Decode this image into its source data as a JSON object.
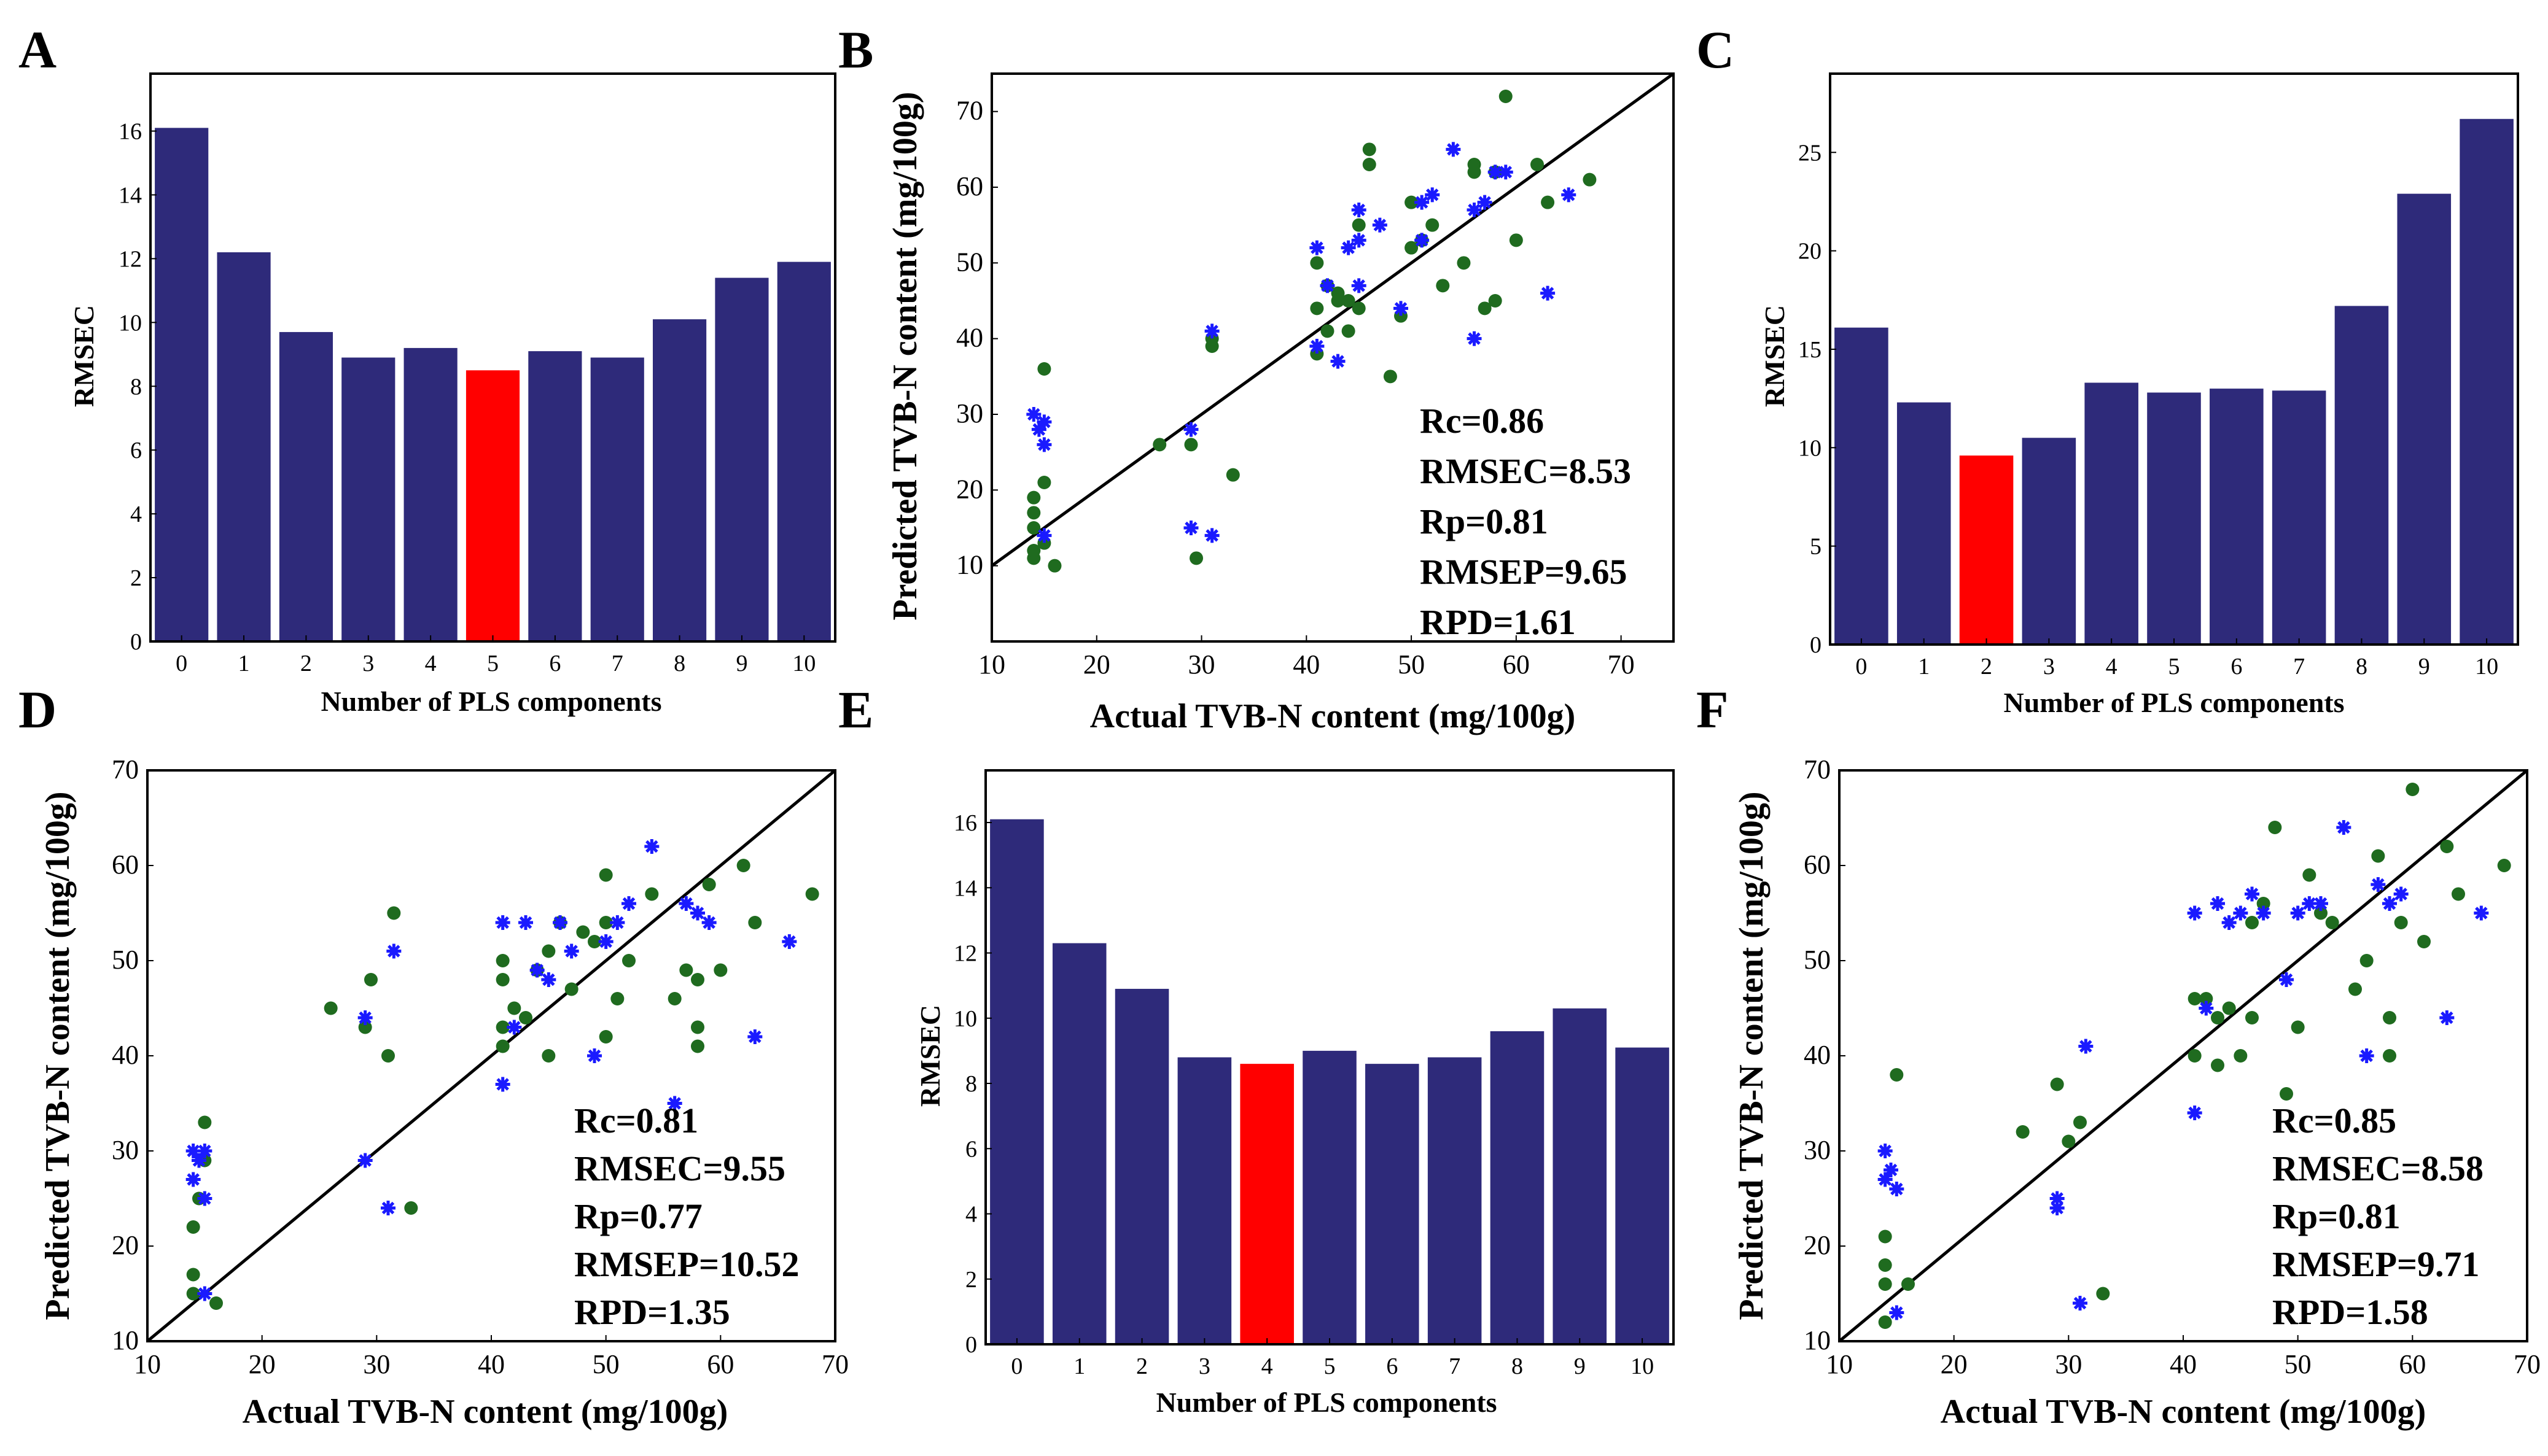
{
  "figure": {
    "panel_letters": [
      "A",
      "B",
      "C",
      "D",
      "E",
      "F"
    ]
  },
  "colors": {
    "bar": "#2e2a7a",
    "bar_highlight": "#ff0000",
    "calibration_point": "#1f6b1f",
    "prediction_point": "#1a1aff",
    "axis": "#000000"
  },
  "chart_data": [
    {
      "id": "A",
      "type": "bar",
      "categories": [
        "0",
        "1",
        "2",
        "3",
        "4",
        "5",
        "6",
        "7",
        "8",
        "9",
        "10"
      ],
      "values": [
        16.1,
        12.2,
        9.7,
        8.9,
        9.2,
        8.5,
        9.1,
        8.9,
        10.1,
        11.4,
        11.9
      ],
      "highlight_index": 5,
      "xlabel": "Number of PLS components",
      "ylabel": "RMSEC",
      "ylim": [
        0,
        17.8
      ],
      "yticks": [
        0,
        2,
        4,
        6,
        8,
        10,
        12,
        14,
        16
      ]
    },
    {
      "id": "B",
      "type": "scatter",
      "xlabel": "Actual TVB-N content (mg/100g)",
      "ylabel": "Predicted TVB-N content (mg/100g)",
      "xlim": [
        10,
        75
      ],
      "ylim": [
        0,
        75
      ],
      "xticks": [
        10,
        20,
        30,
        40,
        50,
        60,
        70
      ],
      "yticks": [
        10,
        20,
        30,
        40,
        50,
        60,
        70
      ],
      "diagonal": true,
      "series": [
        {
          "name": "calibration",
          "marker": "dot",
          "points": [
            [
              14,
              11
            ],
            [
              14,
              12
            ],
            [
              14,
              15
            ],
            [
              14,
              17
            ],
            [
              14,
              19
            ],
            [
              15,
              13
            ],
            [
              15,
              21
            ],
            [
              15,
              36
            ],
            [
              16,
              10
            ],
            [
              26,
              26
            ],
            [
              29,
              26
            ],
            [
              29.5,
              11
            ],
            [
              31,
              39
            ],
            [
              31,
              40
            ],
            [
              33,
              22
            ],
            [
              41,
              38
            ],
            [
              41,
              44
            ],
            [
              41,
              50
            ],
            [
              42,
              41
            ],
            [
              42,
              47
            ],
            [
              43,
              45
            ],
            [
              43,
              46
            ],
            [
              44,
              41
            ],
            [
              44,
              45
            ],
            [
              45,
              44
            ],
            [
              45,
              55
            ],
            [
              46,
              65
            ],
            [
              46,
              63
            ],
            [
              48,
              35
            ],
            [
              49,
              43
            ],
            [
              50,
              52
            ],
            [
              50,
              58
            ],
            [
              51,
              53
            ],
            [
              52,
              55
            ],
            [
              53,
              47
            ],
            [
              55,
              50
            ],
            [
              56,
              62
            ],
            [
              56,
              63
            ],
            [
              57,
              44
            ],
            [
              58,
              62
            ],
            [
              58,
              45
            ],
            [
              59,
              72
            ],
            [
              60,
              53
            ],
            [
              62,
              63
            ],
            [
              63,
              58
            ],
            [
              67,
              61
            ]
          ]
        },
        {
          "name": "prediction",
          "marker": "star",
          "points": [
            [
              14,
              30
            ],
            [
              14.5,
              28
            ],
            [
              15,
              26
            ],
            [
              15,
              29
            ],
            [
              15,
              14
            ],
            [
              29,
              28
            ],
            [
              29,
              15
            ],
            [
              31,
              14
            ],
            [
              31,
              41
            ],
            [
              41,
              39
            ],
            [
              41,
              52
            ],
            [
              42,
              47
            ],
            [
              43,
              37
            ],
            [
              44,
              52
            ],
            [
              45,
              53
            ],
            [
              45,
              47
            ],
            [
              45,
              57
            ],
            [
              47,
              55
            ],
            [
              49,
              44
            ],
            [
              51,
              53
            ],
            [
              51,
              58
            ],
            [
              52,
              59
            ],
            [
              54,
              65
            ],
            [
              56,
              40
            ],
            [
              56,
              57
            ],
            [
              57,
              58
            ],
            [
              58,
              62
            ],
            [
              59,
              62
            ],
            [
              63,
              46
            ],
            [
              65,
              59
            ]
          ]
        }
      ],
      "stats": [
        "Rc=0.86",
        "RMSEC=8.53",
        "Rp=0.81",
        "RMSEP=9.65",
        "RPD=1.61"
      ]
    },
    {
      "id": "C",
      "type": "bar",
      "categories": [
        "0",
        "1",
        "2",
        "3",
        "4",
        "5",
        "6",
        "7",
        "8",
        "9",
        "10"
      ],
      "values": [
        16.1,
        12.3,
        9.6,
        10.5,
        13.3,
        12.8,
        13.0,
        12.9,
        17.2,
        22.9,
        26.7
      ],
      "highlight_index": 2,
      "xlabel": "Number of PLS components",
      "ylabel": "RMSEC",
      "ylim": [
        0,
        29
      ],
      "yticks": [
        0,
        5,
        10,
        15,
        20,
        25
      ]
    },
    {
      "id": "D",
      "type": "scatter",
      "xlabel": "Actual TVB-N content (mg/100g)",
      "ylabel": "Predicted TVB-N content (mg/100g)",
      "xlim": [
        10,
        70
      ],
      "ylim": [
        10,
        70
      ],
      "xticks": [
        10,
        20,
        30,
        40,
        50,
        60,
        70
      ],
      "yticks": [
        10,
        20,
        30,
        40,
        50,
        60,
        70
      ],
      "diagonal": true,
      "series": [
        {
          "name": "calibration",
          "marker": "dot",
          "points": [
            [
              14,
              15
            ],
            [
              14,
              17
            ],
            [
              14,
              22
            ],
            [
              14.5,
              25
            ],
            [
              15,
              29
            ],
            [
              15,
              33
            ],
            [
              16,
              14
            ],
            [
              26,
              45
            ],
            [
              29,
              43
            ],
            [
              29.5,
              48
            ],
            [
              31,
              40
            ],
            [
              31.5,
              55
            ],
            [
              33,
              24
            ],
            [
              41,
              41
            ],
            [
              41,
              43
            ],
            [
              41,
              48
            ],
            [
              41,
              50
            ],
            [
              42,
              45
            ],
            [
              43,
              44
            ],
            [
              44,
              49
            ],
            [
              45,
              40
            ],
            [
              45,
              51
            ],
            [
              46,
              54
            ],
            [
              47,
              47
            ],
            [
              48,
              53
            ],
            [
              49,
              52
            ],
            [
              50,
              42
            ],
            [
              50,
              54
            ],
            [
              50,
              59
            ],
            [
              51,
              46
            ],
            [
              52,
              50
            ],
            [
              54,
              57
            ],
            [
              56,
              46
            ],
            [
              57,
              49
            ],
            [
              58,
              43
            ],
            [
              58,
              48
            ],
            [
              58,
              41
            ],
            [
              59,
              58
            ],
            [
              60,
              49
            ],
            [
              62,
              60
            ],
            [
              63,
              54
            ],
            [
              68,
              57
            ]
          ]
        },
        {
          "name": "prediction",
          "marker": "star",
          "points": [
            [
              14,
              27
            ],
            [
              14,
              30
            ],
            [
              14.5,
              29
            ],
            [
              15,
              30
            ],
            [
              15,
              25
            ],
            [
              15,
              15
            ],
            [
              29,
              29
            ],
            [
              29,
              44
            ],
            [
              31,
              24
            ],
            [
              31.5,
              51
            ],
            [
              41,
              37
            ],
            [
              41,
              54
            ],
            [
              42,
              43
            ],
            [
              43,
              54
            ],
            [
              44,
              49
            ],
            [
              45,
              48
            ],
            [
              46,
              54
            ],
            [
              47,
              51
            ],
            [
              49,
              40
            ],
            [
              50,
              52
            ],
            [
              51,
              54
            ],
            [
              52,
              56
            ],
            [
              54,
              62
            ],
            [
              56,
              35
            ],
            [
              57,
              56
            ],
            [
              58,
              55
            ],
            [
              59,
              54
            ],
            [
              63,
              42
            ],
            [
              66,
              52
            ]
          ]
        }
      ],
      "stats": [
        "Rc=0.81",
        "RMSEC=9.55",
        "Rp=0.77",
        "RMSEP=10.52",
        "RPD=1.35"
      ]
    },
    {
      "id": "E",
      "type": "bar",
      "categories": [
        "0",
        "1",
        "2",
        "3",
        "4",
        "5",
        "6",
        "7",
        "8",
        "9",
        "10"
      ],
      "values": [
        16.1,
        12.3,
        10.9,
        8.8,
        8.6,
        9.0,
        8.6,
        8.8,
        9.6,
        10.3,
        9.1
      ],
      "highlight_index": 4,
      "xlabel": "Number of PLS components",
      "ylabel": "RMSEC",
      "ylim": [
        0,
        17.6
      ],
      "yticks": [
        0,
        2,
        4,
        6,
        8,
        10,
        12,
        14,
        16
      ]
    },
    {
      "id": "F",
      "type": "scatter",
      "xlabel": "Actual TVB-N content (mg/100g)",
      "ylabel": "Predicted TVB-N content (mg/100g)",
      "xlim": [
        10,
        70
      ],
      "ylim": [
        10,
        70
      ],
      "xticks": [
        10,
        20,
        30,
        40,
        50,
        60,
        70
      ],
      "yticks": [
        10,
        20,
        30,
        40,
        50,
        60,
        70
      ],
      "diagonal": true,
      "series": [
        {
          "name": "calibration",
          "marker": "dot",
          "points": [
            [
              14,
              12
            ],
            [
              14,
              16
            ],
            [
              14,
              18
            ],
            [
              14,
              21
            ],
            [
              15,
              38
            ],
            [
              16,
              16
            ],
            [
              26,
              32
            ],
            [
              29,
              37
            ],
            [
              30,
              31
            ],
            [
              31,
              33
            ],
            [
              33,
              15
            ],
            [
              41,
              40
            ],
            [
              41,
              46
            ],
            [
              42,
              46
            ],
            [
              43,
              39
            ],
            [
              43,
              44
            ],
            [
              44,
              45
            ],
            [
              45,
              40
            ],
            [
              46,
              44
            ],
            [
              46,
              54
            ],
            [
              47,
              56
            ],
            [
              48,
              64
            ],
            [
              49,
              36
            ],
            [
              50,
              43
            ],
            [
              51,
              59
            ],
            [
              52,
              55
            ],
            [
              53,
              54
            ],
            [
              55,
              47
            ],
            [
              56,
              50
            ],
            [
              57,
              61
            ],
            [
              58,
              44
            ],
            [
              58,
              40
            ],
            [
              59,
              54
            ],
            [
              60,
              68
            ],
            [
              61,
              52
            ],
            [
              63,
              62
            ],
            [
              64,
              57
            ],
            [
              68,
              60
            ]
          ]
        },
        {
          "name": "prediction",
          "marker": "star",
          "points": [
            [
              14,
              30
            ],
            [
              14,
              27
            ],
            [
              14.5,
              28
            ],
            [
              15,
              26
            ],
            [
              15,
              13
            ],
            [
              29,
              25
            ],
            [
              29,
              24
            ],
            [
              31,
              14
            ],
            [
              31.5,
              41
            ],
            [
              41,
              34
            ],
            [
              41,
              55
            ],
            [
              42,
              45
            ],
            [
              43,
              56
            ],
            [
              44,
              54
            ],
            [
              45,
              55
            ],
            [
              46,
              57
            ],
            [
              47,
              55
            ],
            [
              49,
              48
            ],
            [
              50,
              55
            ],
            [
              51,
              56
            ],
            [
              52,
              56
            ],
            [
              54,
              64
            ],
            [
              56,
              40
            ],
            [
              57,
              58
            ],
            [
              58,
              56
            ],
            [
              59,
              57
            ],
            [
              63,
              44
            ],
            [
              66,
              55
            ]
          ]
        }
      ],
      "stats": [
        "Rc=0.85",
        "RMSEC=8.58",
        "Rp=0.81",
        "RMSEP=9.71",
        "RPD=1.58"
      ]
    }
  ]
}
